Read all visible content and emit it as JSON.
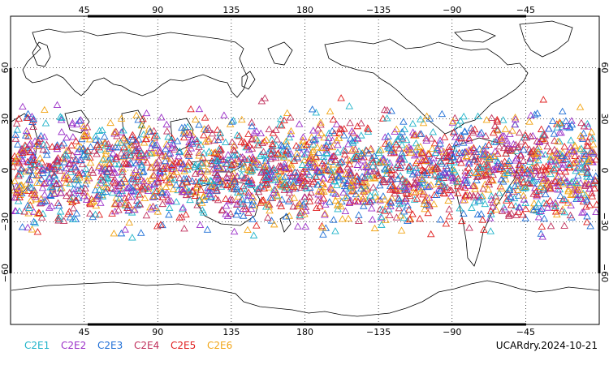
{
  "map": {
    "projection": "cylindrical equidistant",
    "center_longitude": 180,
    "lon_range": [
      0,
      360
    ],
    "lat_range": [
      -90,
      90
    ],
    "grid": "dotted",
    "marker_shape": "triangle",
    "lon_ticks_top": [
      "45",
      "90",
      "135",
      "180",
      "−135",
      "−90",
      "−45"
    ],
    "lon_ticks_bottom": [
      "45",
      "90",
      "135",
      "180",
      "−135",
      "−90",
      "−45"
    ],
    "lat_ticks_left": [
      "60",
      "30",
      "0",
      "−30",
      "−60"
    ],
    "lat_ticks_right": [
      "60",
      "30",
      "0",
      "−30",
      "−60"
    ],
    "observation_band_lat": [
      -45,
      45
    ]
  },
  "legend": [
    {
      "label": "C2E1",
      "color": "#1fb3c9"
    },
    {
      "label": "C2E2",
      "color": "#9b30c8"
    },
    {
      "label": "C2E3",
      "color": "#1f6fd6"
    },
    {
      "label": "C2E4",
      "color": "#c0305c"
    },
    {
      "label": "C2E5",
      "color": "#e02020"
    },
    {
      "label": "C2E6",
      "color": "#f2a516"
    }
  ],
  "footer": {
    "product_date": "UCARdry.2024-10-21"
  }
}
